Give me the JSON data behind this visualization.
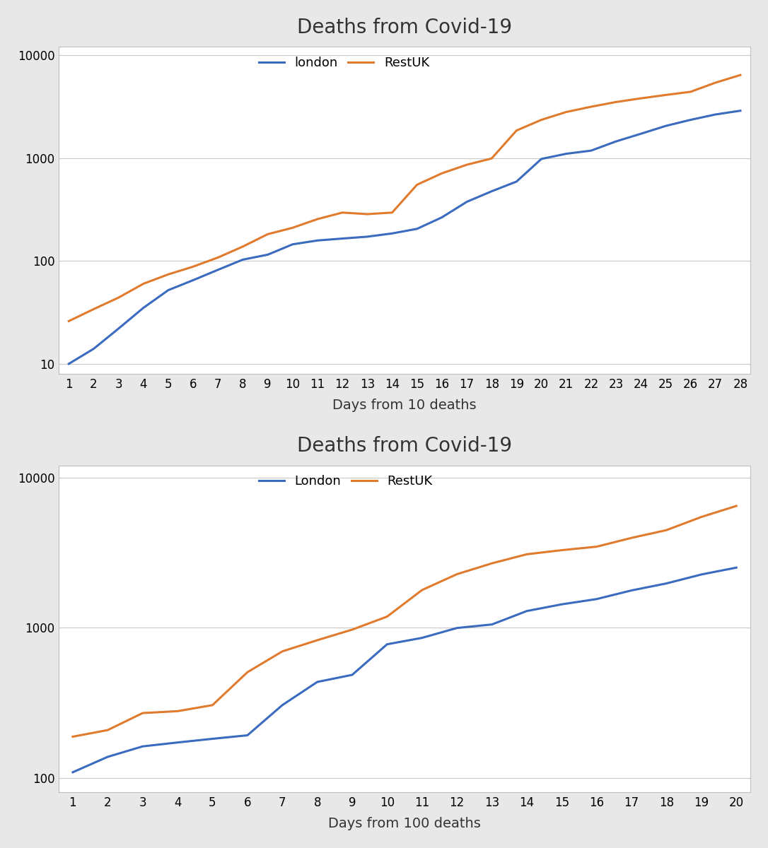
{
  "chart1": {
    "title": "Deaths from Covid-19",
    "xlabel": "Days from 10 deaths",
    "london_label": "london",
    "restuk_label": "RestUK",
    "london_color": "#3A6BBF",
    "restuk_color": "#E07B2E",
    "london_data": [
      10,
      14,
      22,
      35,
      52,
      65,
      82,
      103,
      115,
      145,
      158,
      165,
      172,
      185,
      205,
      265,
      375,
      475,
      590,
      980,
      1100,
      1180,
      1450,
      1720,
      2050,
      2350,
      2650,
      2880
    ],
    "restuk_data": [
      26,
      34,
      44,
      60,
      74,
      88,
      108,
      138,
      182,
      210,
      255,
      295,
      285,
      295,
      550,
      710,
      860,
      990,
      1850,
      2350,
      2800,
      3150,
      3500,
      3800,
      4100,
      4400,
      5400,
      6400
    ],
    "days": [
      1,
      2,
      3,
      4,
      5,
      6,
      7,
      8,
      9,
      10,
      11,
      12,
      13,
      14,
      15,
      16,
      17,
      18,
      19,
      20,
      21,
      22,
      23,
      24,
      25,
      26,
      27,
      28
    ],
    "ylim": [
      8,
      12000
    ],
    "yticks": [
      10,
      100,
      1000,
      10000
    ],
    "ytick_labels": [
      "10",
      "100",
      "1000",
      "10000"
    ],
    "xlim": [
      1,
      28
    ],
    "xticks": [
      1,
      2,
      3,
      4,
      5,
      6,
      7,
      8,
      9,
      10,
      11,
      12,
      13,
      14,
      15,
      16,
      17,
      18,
      19,
      20,
      21,
      22,
      23,
      24,
      25,
      26,
      27,
      28
    ]
  },
  "chart2": {
    "title": "Deaths from Covid-19",
    "xlabel": "Days from 100 deaths",
    "london_label": "London",
    "restuk_label": "RestUK",
    "london_color": "#3A6BBF",
    "restuk_color": "#E07B2E",
    "london_data": [
      109,
      138,
      162,
      172,
      182,
      192,
      305,
      435,
      485,
      775,
      855,
      995,
      1050,
      1290,
      1430,
      1550,
      1770,
      1970,
      2260,
      2510
    ],
    "restuk_data": [
      188,
      208,
      270,
      278,
      305,
      505,
      695,
      825,
      970,
      1185,
      1780,
      2270,
      2680,
      3080,
      3280,
      3460,
      3960,
      4460,
      5460,
      6460
    ],
    "days": [
      1,
      2,
      3,
      4,
      5,
      6,
      7,
      8,
      9,
      10,
      11,
      12,
      13,
      14,
      15,
      16,
      17,
      18,
      19,
      20
    ],
    "ylim": [
      80,
      12000
    ],
    "yticks": [
      100,
      1000,
      10000
    ],
    "ytick_labels": [
      "100",
      "1000",
      "10000"
    ],
    "xlim": [
      1,
      20
    ],
    "xticks": [
      1,
      2,
      3,
      4,
      5,
      6,
      7,
      8,
      9,
      10,
      11,
      12,
      13,
      14,
      15,
      16,
      17,
      18,
      19,
      20
    ]
  },
  "outer_bg": "#e8e8e8",
  "panel_bg": "#ffffff",
  "grid_color": "#c8c8c8",
  "border_color": "#c0c0c0",
  "linewidth": 2.2,
  "title_fontsize": 20,
  "legend_fontsize": 13,
  "tick_fontsize": 12,
  "label_fontsize": 14
}
